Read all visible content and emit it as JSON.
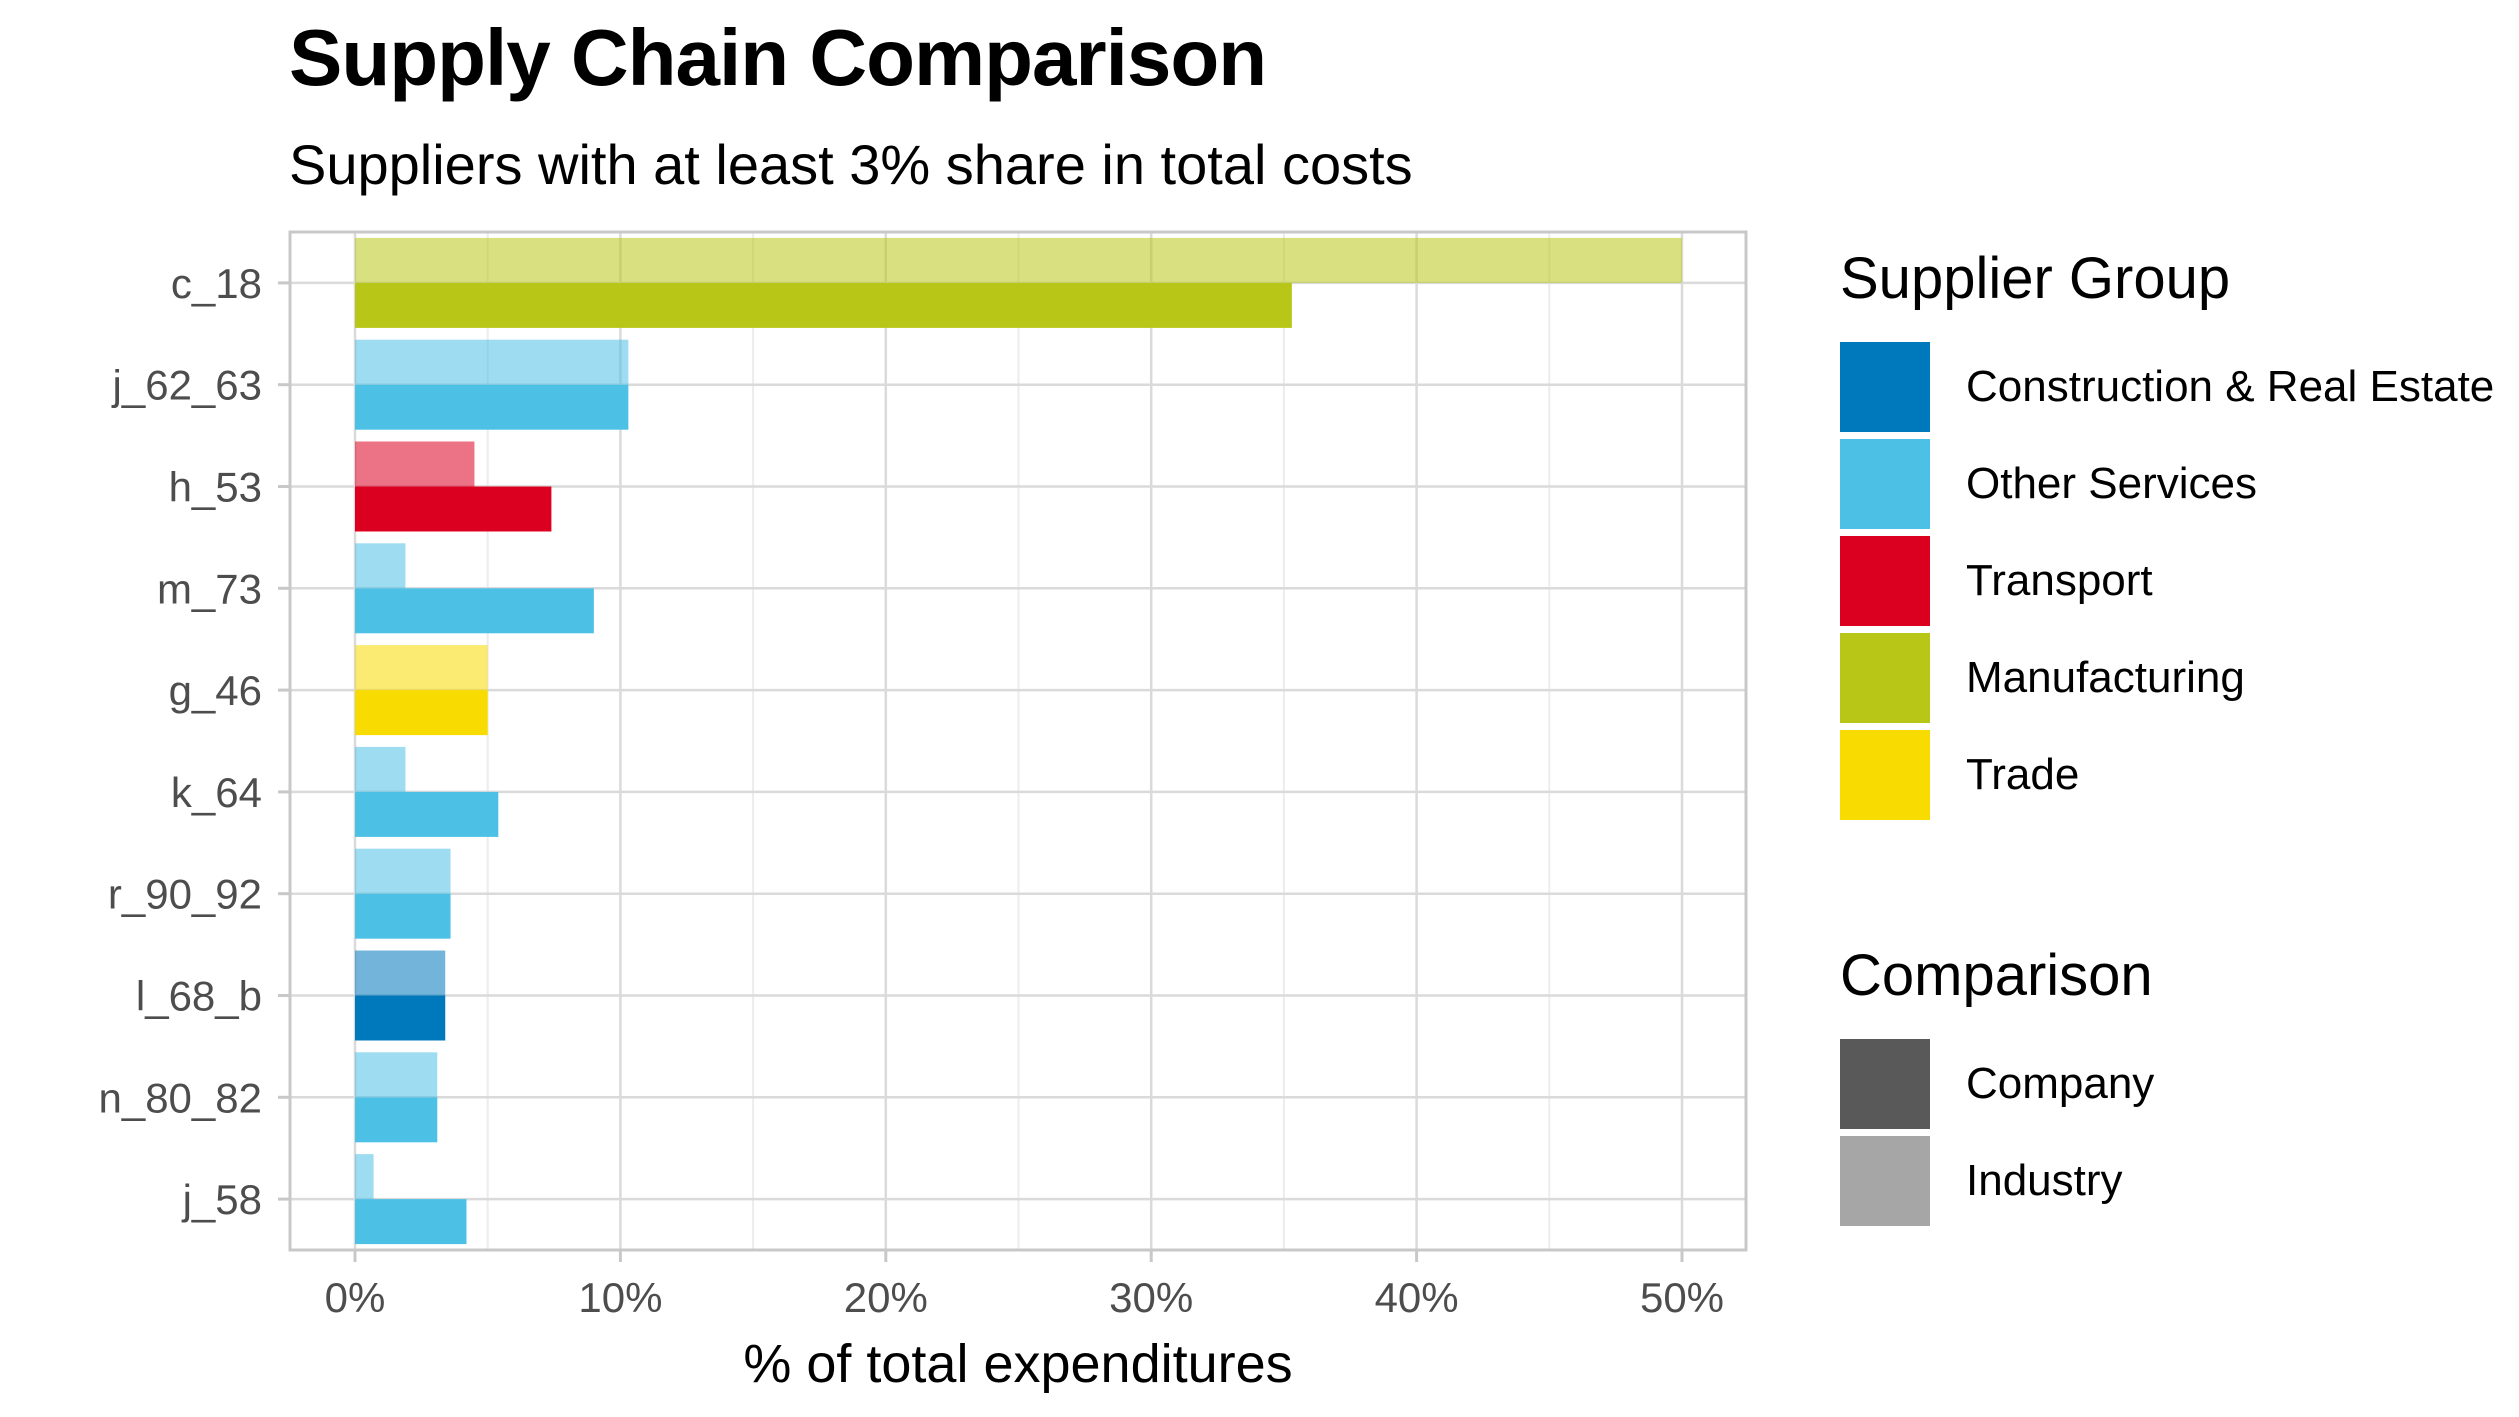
{
  "chart_data": {
    "type": "bar",
    "orientation": "horizontal",
    "title": "Supply Chain Comparison",
    "subtitle": "Suppliers with at least 3% share in total costs",
    "xlabel": "% of total expenditures",
    "ylabel": "",
    "xlim": [
      0,
      52
    ],
    "x_ticks": [
      "0%",
      "10%",
      "20%",
      "30%",
      "40%",
      "50%"
    ],
    "x_tick_values": [
      0,
      10,
      20,
      30,
      40,
      50
    ],
    "grid": true,
    "categories": [
      "c_18",
      "j_62_63",
      "h_53",
      "m_73",
      "g_46",
      "k_64",
      "r_90_92",
      "l_68_b",
      "n_80_82",
      "j_58"
    ],
    "groups": [
      "Manufacturing",
      "Other Services",
      "Transport",
      "Other Services",
      "Trade",
      "Other Services",
      "Other Services",
      "Construction & Real Estate",
      "Other Services",
      "Other Services"
    ],
    "series": [
      {
        "name": "Industry",
        "values": [
          50.0,
          10.3,
          4.5,
          1.9,
          5.0,
          1.9,
          3.6,
          3.4,
          3.1,
          0.7
        ]
      },
      {
        "name": "Company",
        "values": [
          35.3,
          10.3,
          7.4,
          9.0,
          5.0,
          5.4,
          3.6,
          3.4,
          3.1,
          4.2
        ]
      }
    ],
    "legend_placement": "right"
  },
  "legend": {
    "group_title": "Supplier Group",
    "groups": [
      {
        "label": "Construction & Real Estate",
        "color": "#0079BC"
      },
      {
        "label": "Other Services",
        "color": "#4DC0E6"
      },
      {
        "label": "Transport",
        "color": "#DC0020"
      },
      {
        "label": "Manufacturing",
        "color": "#B8C617"
      },
      {
        "label": "Trade",
        "color": "#F8DB00"
      }
    ],
    "comparison_title": "Comparison",
    "comparison": [
      {
        "label": "Company",
        "color": "#595959"
      },
      {
        "label": "Industry",
        "color": "#A6A6A6"
      }
    ]
  }
}
